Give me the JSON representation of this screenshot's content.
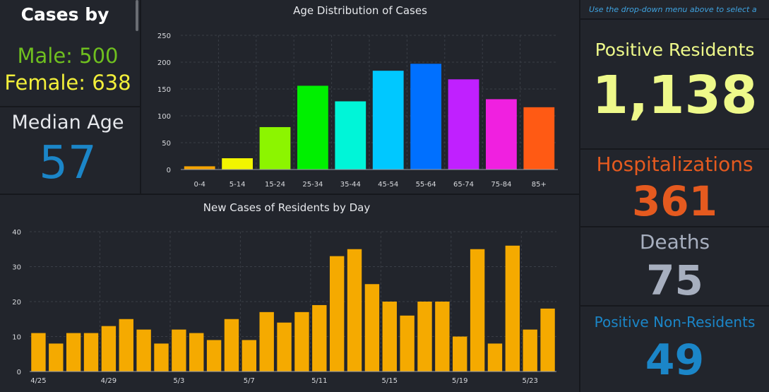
{
  "left_stats": {
    "title": "Cases by",
    "male": "Male: 500",
    "female": "Female: 638",
    "median_label": "Median Age",
    "median_value": "57"
  },
  "right_stats": {
    "hint": "Use the drop-down menu above to select a",
    "positive_label": "Positive Residents",
    "positive_value": "1,138",
    "hosp_label": "Hospitalizations",
    "hosp_value": "361",
    "deaths_label": "Deaths",
    "deaths_value": "75",
    "nonres_label": "Positive Non-Residents",
    "nonres_value": "49"
  },
  "colors": {
    "male": "#6fbf1f",
    "female": "#f2ef3a",
    "median": "#1b86c8",
    "positive": "#eef98a",
    "hosp": "#e55a1f",
    "deaths": "#a7afbf",
    "nonres": "#1b86c8",
    "daily_bar": "#f5aa00"
  },
  "chart_data": [
    {
      "type": "bar",
      "title": "Age Distribution of Cases",
      "categories": [
        "0-4",
        "5-14",
        "15-24",
        "25-34",
        "35-44",
        "45-54",
        "55-64",
        "65-74",
        "75-84",
        "85+"
      ],
      "values": [
        6,
        21,
        79,
        156,
        127,
        184,
        197,
        168,
        131,
        116
      ],
      "colors": [
        "#f5a300",
        "#f2f500",
        "#8cf500",
        "#00f000",
        "#00f5d8",
        "#00c8ff",
        "#0070ff",
        "#c020ff",
        "#f020e0",
        "#ff5a14"
      ],
      "ylim": [
        0,
        250
      ],
      "yticks": [
        0,
        50,
        100,
        150,
        200,
        250
      ],
      "grid": true
    },
    {
      "type": "bar",
      "title": "New Cases of Residents by Day",
      "categories": [
        "4/25",
        "4/26",
        "4/27",
        "4/28",
        "4/29",
        "4/30",
        "5/1",
        "5/2",
        "5/3",
        "5/4",
        "5/5",
        "5/6",
        "5/7",
        "5/8",
        "5/9",
        "5/10",
        "5/11",
        "5/12",
        "5/13",
        "5/14",
        "5/15",
        "5/16",
        "5/17",
        "5/18",
        "5/19",
        "5/20",
        "5/21",
        "5/22",
        "5/23",
        "5/24"
      ],
      "values": [
        11,
        8,
        11,
        11,
        13,
        15,
        12,
        8,
        12,
        11,
        9,
        15,
        9,
        17,
        14,
        17,
        19,
        33,
        35,
        25,
        20,
        16,
        20,
        20,
        10,
        35,
        8,
        36,
        12,
        18
      ],
      "xtick_labels": [
        "4/25",
        "4/29",
        "5/3",
        "5/7",
        "5/11",
        "5/15",
        "5/19",
        "5/23"
      ],
      "ylim": [
        0,
        40
      ],
      "yticks": [
        0,
        10,
        20,
        30,
        40
      ],
      "grid": true
    }
  ]
}
